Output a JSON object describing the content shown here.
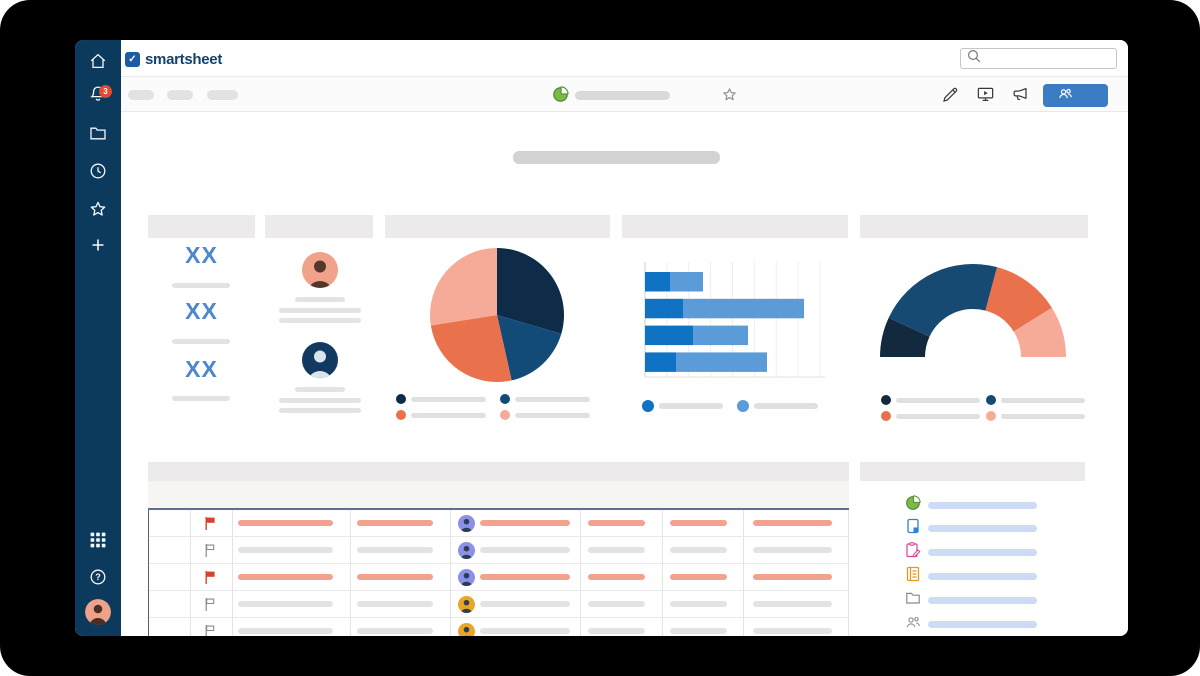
{
  "app": {
    "logo_text": "smartsheet"
  },
  "colors": {
    "sidebar_bg": "#0b3a5d",
    "accent_blue": "#3c7cc5",
    "badge_red": "#e04a32",
    "flag_red": "#d8432f",
    "flag_gray": "#8a8a8a",
    "salmon_bar": "#f2a28f",
    "gray_bar": "#e3e3e3",
    "lightblue_bar": "#cddcf4",
    "metric_blue": "#4e87cd",
    "table_header_line": "#5d6e97",
    "avatar_purple": "#8d90e8",
    "avatar_amber": "#e9a62a",
    "avatar_salmon": "#f0a28b",
    "avatar_navy": "#123a60"
  },
  "sidebar": {
    "badge_count": "3",
    "items": [
      {
        "name": "home",
        "icon": "home-icon"
      },
      {
        "name": "notifications",
        "icon": "bell-icon",
        "badge": "3"
      },
      {
        "name": "browse",
        "icon": "folder-icon"
      },
      {
        "name": "recents",
        "icon": "clock-icon"
      },
      {
        "name": "favorites",
        "icon": "star-icon"
      },
      {
        "name": "create",
        "icon": "plus-icon"
      },
      {
        "name": "apps",
        "icon": "grid-icon"
      },
      {
        "name": "help",
        "icon": "question-icon"
      },
      {
        "name": "account",
        "icon": "avatar"
      }
    ]
  },
  "header": {
    "search_placeholder": ""
  },
  "toolbar": {
    "breadcrumb_pills": 3,
    "dashboard_icon": "green-pie-dashboard-icon",
    "title_placeholder": true,
    "favorite_star": true,
    "actions": [
      {
        "name": "edit",
        "icon": "pencil-icon"
      },
      {
        "name": "present",
        "icon": "monitor-play-icon"
      },
      {
        "name": "announce",
        "icon": "megaphone-icon"
      },
      {
        "name": "share",
        "icon": "people-icon",
        "style": "primary-blue-button"
      }
    ]
  },
  "page": {
    "title_is_placeholder_bar": true
  },
  "metrics": {
    "values": [
      "XX",
      "XX",
      "XX"
    ]
  },
  "people": {
    "members": [
      {
        "avatar_bg": "#f0a28b",
        "avatar_fg": "#53382b",
        "lines": 3
      },
      {
        "avatar_bg": "#123a60",
        "avatar_fg": "#d9e4ef",
        "lines": 3
      }
    ]
  },
  "chart_data": [
    {
      "id": "pie-chart",
      "type": "pie",
      "title": "",
      "slices": [
        {
          "label": "",
          "fraction": 0.295,
          "color": "#0e2b47"
        },
        {
          "label": "",
          "fraction": 0.17,
          "color": "#134b78"
        },
        {
          "label": "",
          "fraction": 0.26,
          "color": "#e9714b"
        },
        {
          "label": "",
          "fraction": 0.275,
          "color": "#f5ab97"
        }
      ],
      "legend_position": "bottom-2x2",
      "legend_colors_column_major": [
        "#0e2b47",
        "#e9714b",
        "#134b78",
        "#f5ab97"
      ]
    },
    {
      "id": "stacked-bar-chart",
      "type": "bar",
      "orientation": "horizontal",
      "title": "",
      "categories": [
        "bar-1",
        "bar-2",
        "bar-3",
        "bar-4"
      ],
      "series": [
        {
          "name": "",
          "color": "#0f72c2",
          "values": [
            25,
            38,
            48,
            31
          ]
        },
        {
          "name": "",
          "color": "#5b9bd8",
          "values": [
            33,
            121,
            55,
            91
          ]
        }
      ],
      "xlim": [
        0,
        175
      ],
      "grid": true,
      "gridline_count": 8,
      "legend_position": "bottom",
      "legend_colors": [
        "#0f72c2",
        "#5b9bd8"
      ]
    },
    {
      "id": "gauge-chart",
      "type": "gauge",
      "title": "",
      "segments": [
        {
          "label": "",
          "sweep_deg": 25,
          "color": "#13293e"
        },
        {
          "label": "",
          "sweep_deg": 80,
          "color": "#164a73"
        },
        {
          "label": "",
          "sweep_deg": 43,
          "color": "#e9714b"
        },
        {
          "label": "",
          "sweep_deg": 32,
          "color": "#f5ab97"
        }
      ],
      "total_deg": 180,
      "legend_position": "bottom-2x2",
      "legend_colors_column_major": [
        "#13293e",
        "#e9714b",
        "#164a73",
        "#f5ab97"
      ]
    }
  ],
  "table": {
    "column_count": 8,
    "rows": [
      {
        "flagged": true,
        "accent": "salmon",
        "avatar": "purple"
      },
      {
        "flagged": false,
        "accent": "gray",
        "avatar": "purple"
      },
      {
        "flagged": true,
        "accent": "salmon",
        "avatar": "purple"
      },
      {
        "flagged": false,
        "accent": "gray",
        "avatar": "amber"
      },
      {
        "flagged": false,
        "accent": "gray",
        "avatar": "amber"
      }
    ]
  },
  "panel": {
    "items": [
      {
        "icon": "dashboard-icon"
      },
      {
        "icon": "sheet-icon"
      },
      {
        "icon": "form-icon"
      },
      {
        "icon": "report-icon"
      },
      {
        "icon": "folder-icon"
      },
      {
        "icon": "workspace-icon"
      }
    ]
  }
}
